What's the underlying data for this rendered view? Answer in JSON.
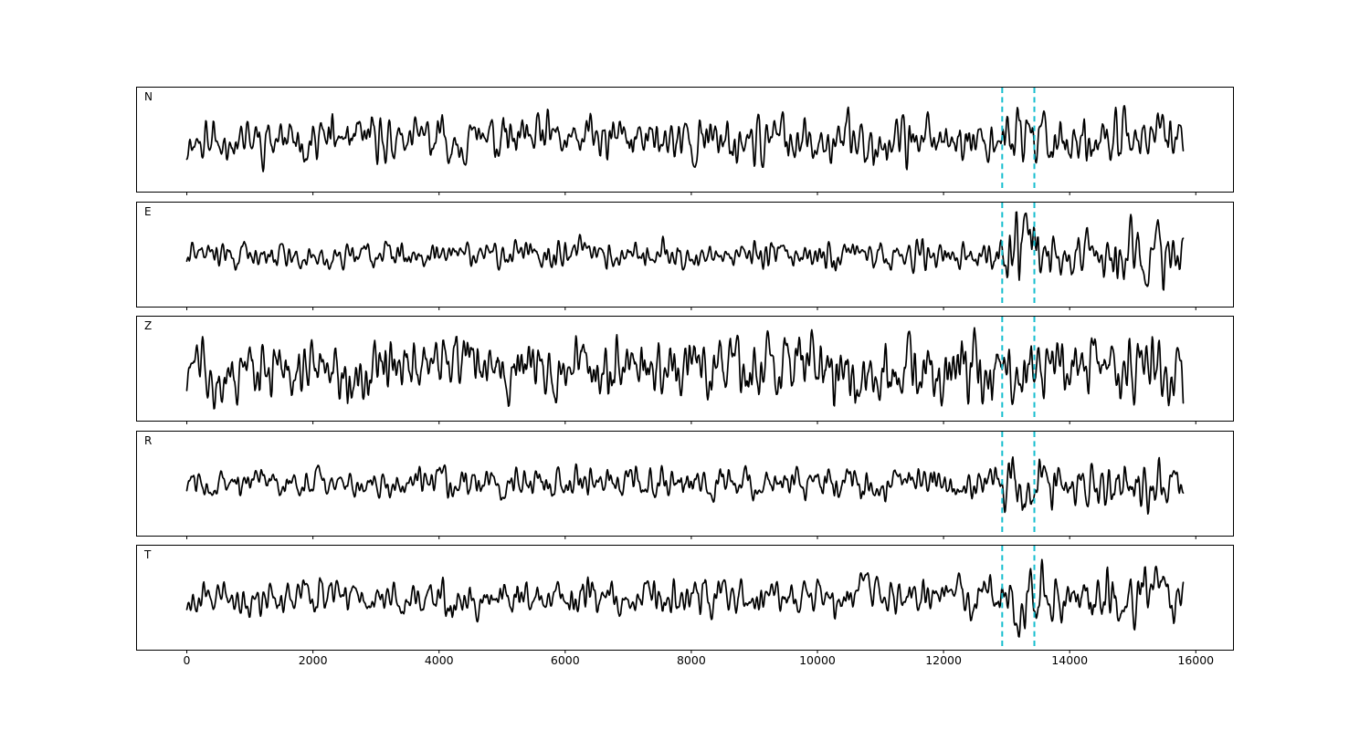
{
  "figure": {
    "background": "#ffffff",
    "title": ""
  },
  "chart_data": {
    "type": "line",
    "title": "",
    "xlabel": "",
    "ylabel": "",
    "layout": "5 vertically stacked panels, shared x axis, x tick labels only on bottom panel, no y ticks",
    "xlim": [
      -790,
      16590
    ],
    "trace_x_range": [
      0,
      15800
    ],
    "sample_step": 10,
    "x_ticks": [
      0,
      2000,
      4000,
      6000,
      8000,
      10000,
      12000,
      14000,
      16000
    ],
    "x_tick_labels": [
      "0",
      "2000",
      "4000",
      "6000",
      "8000",
      "10000",
      "12000",
      "14000",
      "16000"
    ],
    "trace_color": "#000000",
    "trace_linewidth": 1.7,
    "pick_lines": {
      "x_values": [
        12930,
        13440
      ],
      "color": "#17becf",
      "linestyle": "dashed",
      "linewidth": 2,
      "spans": "full height of every panel"
    },
    "waveform_description": "band-limited random noise seismogram traces; amplitude envelope breakpoints [x, relative_amplitude] describe signal strength incl. arrival burst between the dashed pick lines",
    "traces": [
      {
        "name": "N",
        "seed": 11,
        "envelope": [
          [
            0,
            0.6
          ],
          [
            6000,
            0.62
          ],
          [
            12000,
            0.68
          ],
          [
            12900,
            0.64
          ],
          [
            13150,
            1.05
          ],
          [
            13450,
            0.9
          ],
          [
            13800,
            0.72
          ],
          [
            14800,
            0.78
          ],
          [
            15800,
            0.62
          ]
        ]
      },
      {
        "name": "E",
        "seed": 22,
        "envelope": [
          [
            0,
            0.34
          ],
          [
            6000,
            0.38
          ],
          [
            11000,
            0.42
          ],
          [
            12900,
            0.48
          ],
          [
            13150,
            1.05
          ],
          [
            13450,
            0.9
          ],
          [
            13900,
            0.6
          ],
          [
            14500,
            0.68
          ],
          [
            15000,
            0.88
          ],
          [
            15500,
            0.8
          ],
          [
            15800,
            0.62
          ]
        ]
      },
      {
        "name": "Z",
        "seed": 33,
        "envelope": [
          [
            0,
            0.8
          ],
          [
            2500,
            0.9
          ],
          [
            5000,
            0.82
          ],
          [
            8000,
            0.92
          ],
          [
            10000,
            0.86
          ],
          [
            12000,
            0.92
          ],
          [
            13500,
            0.88
          ],
          [
            15000,
            0.92
          ],
          [
            15800,
            0.82
          ]
        ]
      },
      {
        "name": "R",
        "seed": 44,
        "envelope": [
          [
            0,
            0.38
          ],
          [
            6000,
            0.42
          ],
          [
            12000,
            0.46
          ],
          [
            12950,
            0.52
          ],
          [
            13200,
            1.05
          ],
          [
            13500,
            0.88
          ],
          [
            13900,
            0.6
          ],
          [
            14800,
            0.82
          ],
          [
            15300,
            0.72
          ],
          [
            15800,
            0.55
          ]
        ]
      },
      {
        "name": "T",
        "seed": 55,
        "envelope": [
          [
            0,
            0.48
          ],
          [
            6000,
            0.52
          ],
          [
            12000,
            0.56
          ],
          [
            12950,
            0.62
          ],
          [
            13250,
            1.0
          ],
          [
            13650,
            0.8
          ],
          [
            14200,
            0.72
          ],
          [
            14900,
            0.86
          ],
          [
            15400,
            0.72
          ],
          [
            15800,
            0.6
          ]
        ]
      }
    ]
  }
}
